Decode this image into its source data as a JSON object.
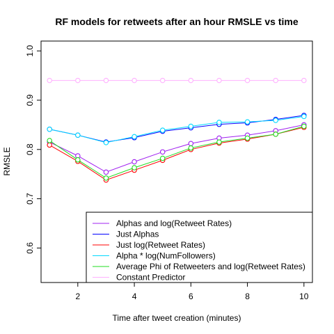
{
  "chart_data": {
    "type": "line",
    "title": "RF models for retweets after an hour RMSLE vs time",
    "xlabel": "Time after tweet creation (minutes)",
    "ylabel": "RMSLE",
    "xlim": [
      0.7,
      10.3
    ],
    "ylim": [
      0.53,
      1.02
    ],
    "x_ticks": [
      2,
      4,
      6,
      8,
      10
    ],
    "y_ticks": [
      0.6,
      0.7,
      0.8,
      0.9,
      1.0
    ],
    "x_tick_labels": [
      "2",
      "4",
      "6",
      "8",
      "10"
    ],
    "y_tick_labels": [
      "0.6",
      "0.7",
      "0.8",
      "0.9",
      "1.0"
    ],
    "x": [
      1,
      2,
      3,
      4,
      5,
      6,
      7,
      8,
      9,
      10
    ],
    "legend_position": "bottom-right",
    "grid": false,
    "series": [
      {
        "name": "Alphas and log(Retweet Rates)",
        "color": "#a020f0",
        "values": [
          0.815,
          0.787,
          0.754,
          0.775,
          0.795,
          0.812,
          0.823,
          0.829,
          0.838,
          0.85
        ]
      },
      {
        "name": "Just Alphas",
        "color": "#0000ff",
        "values": [
          0.841,
          0.829,
          0.815,
          0.824,
          0.837,
          0.844,
          0.851,
          0.854,
          0.861,
          0.869
        ]
      },
      {
        "name": "Just log(Retweet Rates)",
        "color": "#ff0000",
        "values": [
          0.809,
          0.776,
          0.738,
          0.758,
          0.778,
          0.8,
          0.813,
          0.821,
          0.831,
          0.845
        ]
      },
      {
        "name": "Alpha * log(NumFollowers)",
        "color": "#00d8ff",
        "values": [
          0.841,
          0.829,
          0.814,
          0.826,
          0.839,
          0.847,
          0.855,
          0.856,
          0.859,
          0.867
        ]
      },
      {
        "name": "Average Phi of Retweeters and log(Retweet Rates)",
        "color": "#22dd22",
        "values": [
          0.818,
          0.779,
          0.742,
          0.763,
          0.782,
          0.803,
          0.815,
          0.823,
          0.831,
          0.847
        ]
      },
      {
        "name": "Constant Predictor",
        "color": "#ffb0ff",
        "values": [
          0.94,
          0.94,
          0.94,
          0.94,
          0.94,
          0.94,
          0.94,
          0.94,
          0.94,
          0.94
        ]
      }
    ]
  }
}
